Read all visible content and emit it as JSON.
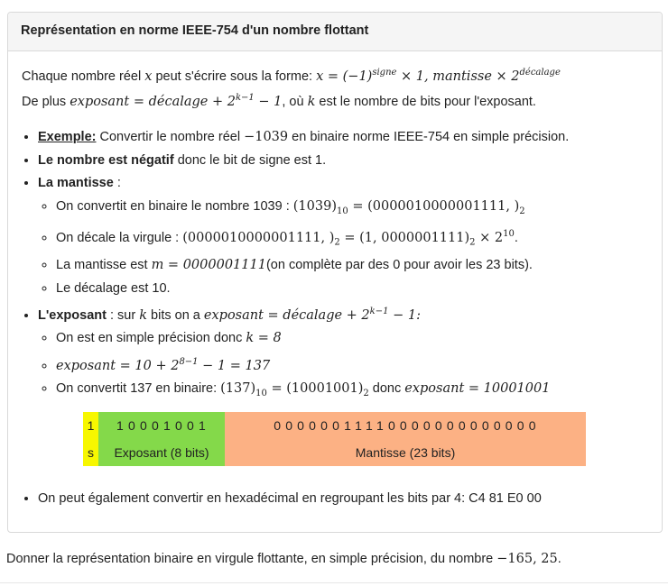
{
  "card": {
    "title": "Représentation en norme IEEE-754 d'un nombre flottant"
  },
  "intro": {
    "line1_prefix": "Chaque nombre réel ",
    "line1_var": "x",
    "line1_mid": " peut s'écrire sous la forme: ",
    "line1_formula_a": "x = (−1)",
    "line1_sup_sign": "signe",
    "line1_formula_b": " × 1, mantisse × 2",
    "line1_sup_dec": "décalage",
    "line2_prefix": "De plus ",
    "line2_formula_a": "exposant = décalage + 2",
    "line2_sup": "k−1",
    "line2_formula_b": " − 1",
    "line2_mid": ", où ",
    "line2_var": "k",
    "line2_suffix": " est le nombre de bits pour l'exposant."
  },
  "items": {
    "example_label": "Exemple:",
    "example_text_a": " Convertir le nombre réel ",
    "example_number": "−1039",
    "example_text_b": " en binaire norme IEEE-754 en simple précision.",
    "negative_bold": "Le nombre est négatif",
    "negative_text": " donc le bit de signe est 1.",
    "mantisse_bold": "La mantisse",
    "mantisse_colon": " :",
    "m1_text": "On convertit en binaire le nombre 1039 : ",
    "m1_formula_a": "(1039)",
    "m1_sub_a": "10",
    "m1_formula_b": " = (0000010000001111, )",
    "m1_sub_b": "2",
    "m2_text": "On décale la virgule : ",
    "m2_formula_a": "(0000010000001111, )",
    "m2_sub_a": "2",
    "m2_formula_b": " = (1, 0000001111)",
    "m2_sub_b": "2",
    "m2_formula_c": " × 2",
    "m2_sup": "10",
    "m2_end": ".",
    "m3_text_a": "La mantisse est ",
    "m3_formula": "m = 0000001111",
    "m3_text_b": "(on complète par des 0 pour avoir les 23 bits).",
    "m4_text": "Le décalage est 10.",
    "exposant_bold": "L'exposant",
    "exposant_text_a": " : sur ",
    "exposant_var": "k",
    "exposant_text_b": " bits on a ",
    "exposant_formula_a": "exposant = décalage + 2",
    "exposant_sup": "k−1",
    "exposant_formula_b": " − 1:",
    "e1_text": "On est en simple précision donc ",
    "e1_formula": "k = 8",
    "e2_formula_a": "exposant = 10 + 2",
    "e2_sup": "8−1",
    "e2_formula_b": " − 1 = 137",
    "e3_text_a": "On convertit 137 en binaire: ",
    "e3_formula_a": "(137)",
    "e3_sub_a": "10",
    "e3_formula_b": " = (10001001)",
    "e3_sub_b": "2",
    "e3_text_b": " donc ",
    "e3_formula_c": "exposant = 10001001"
  },
  "bits": {
    "sign_bits": "1",
    "sign_label": "s",
    "exponent_bits": "10001001",
    "exponent_label": "Exposant (8 bits)",
    "mantissa_bits": "00000011110000000000000",
    "mantissa_label": "Mantisse (23 bits)",
    "colors": {
      "sign": "#f7f700",
      "exponent": "#84d94a",
      "mantissa": "#fcb184"
    }
  },
  "hex": {
    "text": "On peut également convertir en hexadécimal en regroupant les bits par 4: C4 81 E0 00"
  },
  "question": {
    "text_a": "Donner la représentation binaire en virgule flottante, en simple précision, du nombre ",
    "number": "−165, 25",
    "text_b": "."
  }
}
